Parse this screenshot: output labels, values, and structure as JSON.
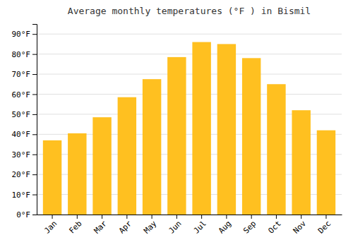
{
  "chart_data": {
    "type": "bar",
    "title": "Average monthly temperatures (°F ) in Bismil",
    "categories": [
      "Jan",
      "Feb",
      "Mar",
      "Apr",
      "May",
      "Jun",
      "Jul",
      "Aug",
      "Sep",
      "Oct",
      "Nov",
      "Dec"
    ],
    "values": [
      37,
      40.5,
      48.5,
      58.5,
      67.5,
      78.5,
      86,
      85,
      78,
      65,
      52,
      42
    ],
    "color": "#FFC020",
    "ylim": [
      0,
      95
    ],
    "yticks": [
      {
        "value": 0,
        "label": "0°F"
      },
      {
        "value": 10,
        "label": "10°F"
      },
      {
        "value": 20,
        "label": "20°F"
      },
      {
        "value": 30,
        "label": "30°F"
      },
      {
        "value": 40,
        "label": "40°F"
      },
      {
        "value": 50,
        "label": "50°F"
      },
      {
        "value": 60,
        "label": "60°F"
      },
      {
        "value": 70,
        "label": "70°F"
      },
      {
        "value": 80,
        "label": "80°F"
      },
      {
        "value": 90,
        "label": "90°F"
      }
    ],
    "grid": true
  }
}
